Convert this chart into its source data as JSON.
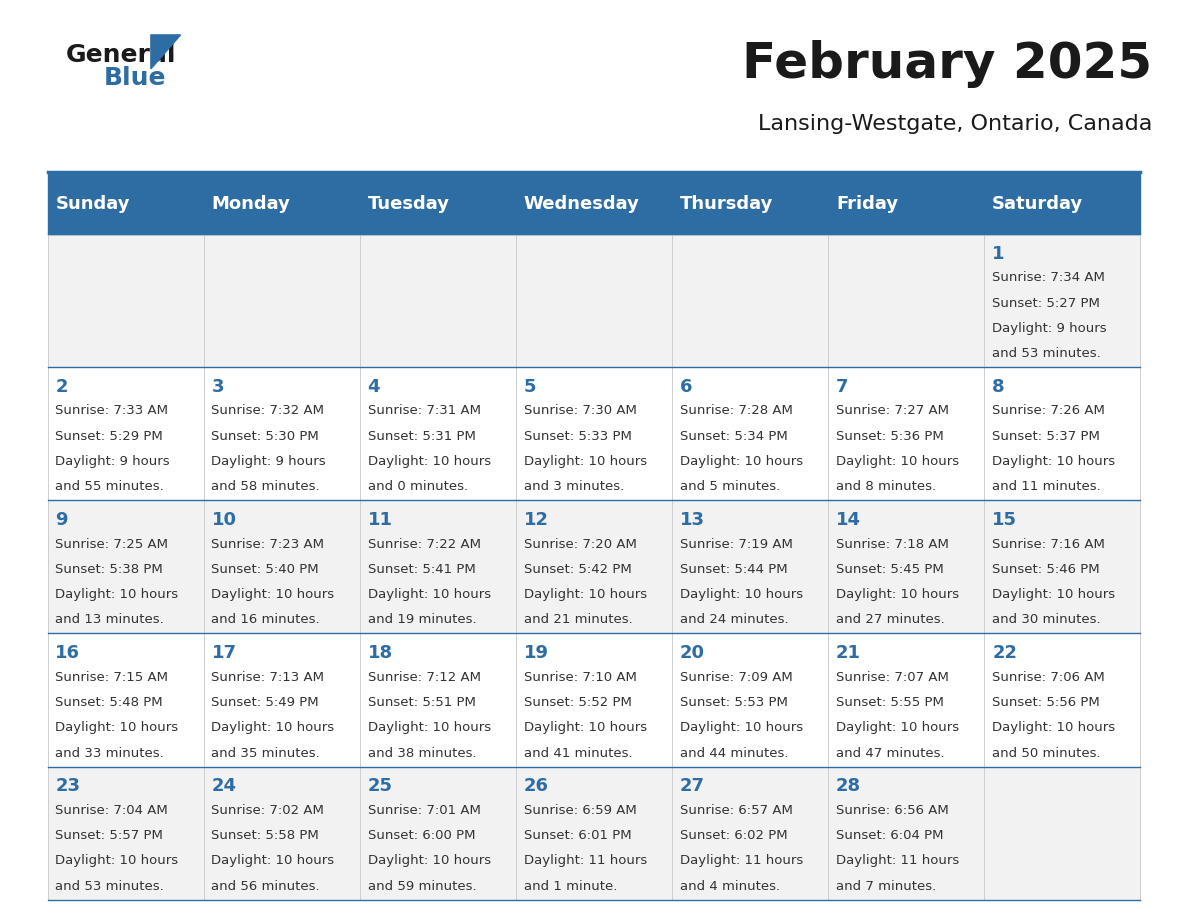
{
  "title": "February 2025",
  "subtitle": "Lansing-Westgate, Ontario, Canada",
  "days_of_week": [
    "Sunday",
    "Monday",
    "Tuesday",
    "Wednesday",
    "Thursday",
    "Friday",
    "Saturday"
  ],
  "header_bg": "#2E6DA4",
  "header_text": "#FFFFFF",
  "cell_bg": "#F2F2F2",
  "cell_bg_alt": "#FFFFFF",
  "border_color": "#2E6DA4",
  "day_number_color": "#2E6DA4",
  "text_color": "#333333",
  "title_color": "#1a1a1a",
  "calendar_data": [
    [
      null,
      null,
      null,
      null,
      null,
      null,
      {
        "day": 1,
        "sunrise": "7:34 AM",
        "sunset": "5:27 PM",
        "daylight": "9 hours and 53 minutes."
      }
    ],
    [
      {
        "day": 2,
        "sunrise": "7:33 AM",
        "sunset": "5:29 PM",
        "daylight": "9 hours and 55 minutes."
      },
      {
        "day": 3,
        "sunrise": "7:32 AM",
        "sunset": "5:30 PM",
        "daylight": "9 hours and 58 minutes."
      },
      {
        "day": 4,
        "sunrise": "7:31 AM",
        "sunset": "5:31 PM",
        "daylight": "10 hours and 0 minutes."
      },
      {
        "day": 5,
        "sunrise": "7:30 AM",
        "sunset": "5:33 PM",
        "daylight": "10 hours and 3 minutes."
      },
      {
        "day": 6,
        "sunrise": "7:28 AM",
        "sunset": "5:34 PM",
        "daylight": "10 hours and 5 minutes."
      },
      {
        "day": 7,
        "sunrise": "7:27 AM",
        "sunset": "5:36 PM",
        "daylight": "10 hours and 8 minutes."
      },
      {
        "day": 8,
        "sunrise": "7:26 AM",
        "sunset": "5:37 PM",
        "daylight": "10 hours and 11 minutes."
      }
    ],
    [
      {
        "day": 9,
        "sunrise": "7:25 AM",
        "sunset": "5:38 PM",
        "daylight": "10 hours and 13 minutes."
      },
      {
        "day": 10,
        "sunrise": "7:23 AM",
        "sunset": "5:40 PM",
        "daylight": "10 hours and 16 minutes."
      },
      {
        "day": 11,
        "sunrise": "7:22 AM",
        "sunset": "5:41 PM",
        "daylight": "10 hours and 19 minutes."
      },
      {
        "day": 12,
        "sunrise": "7:20 AM",
        "sunset": "5:42 PM",
        "daylight": "10 hours and 21 minutes."
      },
      {
        "day": 13,
        "sunrise": "7:19 AM",
        "sunset": "5:44 PM",
        "daylight": "10 hours and 24 minutes."
      },
      {
        "day": 14,
        "sunrise": "7:18 AM",
        "sunset": "5:45 PM",
        "daylight": "10 hours and 27 minutes."
      },
      {
        "day": 15,
        "sunrise": "7:16 AM",
        "sunset": "5:46 PM",
        "daylight": "10 hours and 30 minutes."
      }
    ],
    [
      {
        "day": 16,
        "sunrise": "7:15 AM",
        "sunset": "5:48 PM",
        "daylight": "10 hours and 33 minutes."
      },
      {
        "day": 17,
        "sunrise": "7:13 AM",
        "sunset": "5:49 PM",
        "daylight": "10 hours and 35 minutes."
      },
      {
        "day": 18,
        "sunrise": "7:12 AM",
        "sunset": "5:51 PM",
        "daylight": "10 hours and 38 minutes."
      },
      {
        "day": 19,
        "sunrise": "7:10 AM",
        "sunset": "5:52 PM",
        "daylight": "10 hours and 41 minutes."
      },
      {
        "day": 20,
        "sunrise": "7:09 AM",
        "sunset": "5:53 PM",
        "daylight": "10 hours and 44 minutes."
      },
      {
        "day": 21,
        "sunrise": "7:07 AM",
        "sunset": "5:55 PM",
        "daylight": "10 hours and 47 minutes."
      },
      {
        "day": 22,
        "sunrise": "7:06 AM",
        "sunset": "5:56 PM",
        "daylight": "10 hours and 50 minutes."
      }
    ],
    [
      {
        "day": 23,
        "sunrise": "7:04 AM",
        "sunset": "5:57 PM",
        "daylight": "10 hours and 53 minutes."
      },
      {
        "day": 24,
        "sunrise": "7:02 AM",
        "sunset": "5:58 PM",
        "daylight": "10 hours and 56 minutes."
      },
      {
        "day": 25,
        "sunrise": "7:01 AM",
        "sunset": "6:00 PM",
        "daylight": "10 hours and 59 minutes."
      },
      {
        "day": 26,
        "sunrise": "6:59 AM",
        "sunset": "6:01 PM",
        "daylight": "11 hours and 1 minute."
      },
      {
        "day": 27,
        "sunrise": "6:57 AM",
        "sunset": "6:02 PM",
        "daylight": "11 hours and 4 minutes."
      },
      {
        "day": 28,
        "sunrise": "6:56 AM",
        "sunset": "6:04 PM",
        "daylight": "11 hours and 7 minutes."
      },
      null
    ]
  ]
}
